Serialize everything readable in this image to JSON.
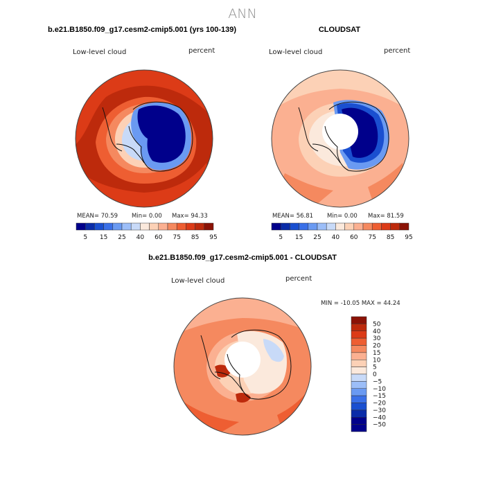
{
  "page_title": "ANN",
  "panels": [
    {
      "title": "b.e21.B1850.f09_g17.cesm2-cmip5.001 (yrs 100-139)",
      "left_label": "Low-level cloud",
      "right_label": "percent",
      "stats": {
        "mean": "MEAN=  70.59",
        "min": "Min=   0.00",
        "max": "Max=  94.33"
      },
      "colorbar_ticks": [
        "5",
        "15",
        "25",
        "40",
        "60",
        "75",
        "85",
        "95"
      ]
    },
    {
      "title": "CLOUDSAT",
      "left_label": "Low-level cloud",
      "right_label": "percent",
      "stats": {
        "mean": "MEAN=  56.81",
        "min": "Min=   0.00",
        "max": "Max=  81.59"
      },
      "colorbar_ticks": [
        "5",
        "15",
        "25",
        "40",
        "60",
        "75",
        "85",
        "95"
      ]
    },
    {
      "title": "b.e21.B1850.f09_g17.cesm2-cmip5.001 - CLOUDSAT",
      "left_label": "Low-level cloud",
      "right_label": "percent",
      "stats_line": "MIN = -10.05 MAX =  44.24",
      "colorbar_ticks": [
        "50",
        "40",
        "30",
        "20",
        "15",
        "10",
        "5",
        "0",
        "−5",
        "−10",
        "−15",
        "−20",
        "−30",
        "−40",
        "−50"
      ]
    }
  ],
  "colors": {
    "abs_scale": [
      "#00008b",
      "#0a2ca8",
      "#1a4fd0",
      "#3a70e8",
      "#6a9af2",
      "#9cbef8",
      "#c8daf8",
      "#fbe9dc",
      "#fcd1b6",
      "#fbb091",
      "#f5895f",
      "#ee5e32",
      "#dc3b17",
      "#bd2a0c",
      "#8b1206"
    ],
    "diff_scale": [
      "#8b1206",
      "#bd2a0c",
      "#dc3b17",
      "#ee5e32",
      "#f5895f",
      "#fbb091",
      "#fcd1b6",
      "#fbe9dc",
      "#c8daf8",
      "#9cbef8",
      "#6a9af2",
      "#3a70e8",
      "#1a4fd0",
      "#0a2ca8",
      "#00008b"
    ]
  }
}
